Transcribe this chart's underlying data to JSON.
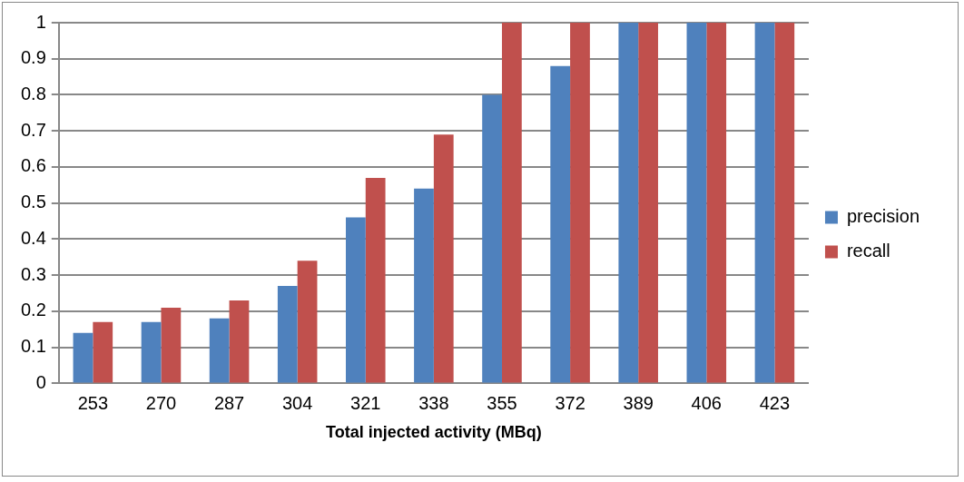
{
  "chart_data": {
    "type": "bar",
    "xlabel": "Total injected activity (MBq)",
    "categories": [
      "253",
      "270",
      "287",
      "304",
      "321",
      "338",
      "355",
      "372",
      "389",
      "406",
      "423"
    ],
    "series": [
      {
        "name": "precision",
        "color": "#4f81bd",
        "values": [
          0.14,
          0.17,
          0.18,
          0.27,
          0.46,
          0.54,
          0.8,
          0.88,
          1,
          1,
          1
        ]
      },
      {
        "name": "recall",
        "color": "#c0504d",
        "values": [
          0.17,
          0.21,
          0.23,
          0.34,
          0.57,
          0.69,
          1,
          1,
          1,
          1,
          1
        ]
      }
    ],
    "ylim": [
      0,
      1
    ],
    "yticks": [
      0,
      0.1,
      0.2,
      0.3,
      0.4,
      0.5,
      0.6,
      0.7,
      0.8,
      0.9,
      1
    ],
    "grid": "y",
    "legend": "right"
  }
}
